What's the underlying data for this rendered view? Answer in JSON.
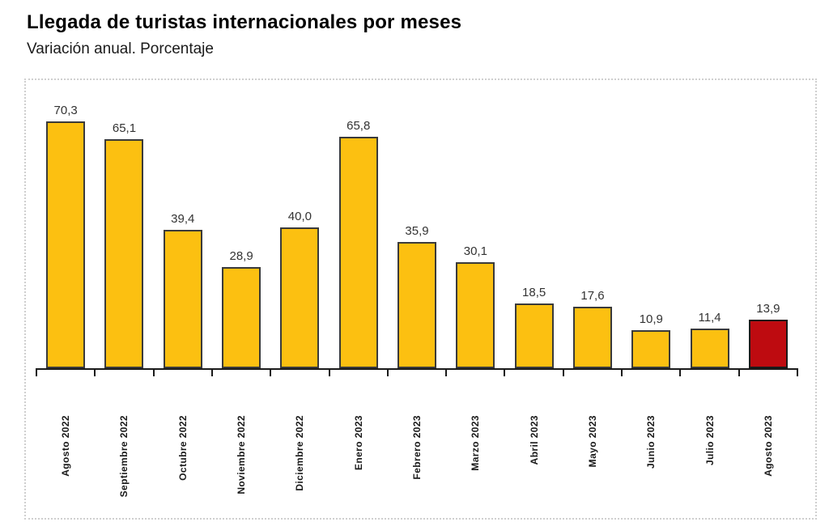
{
  "header": {
    "title": "Llegada de turistas internacionales por meses",
    "subtitle": "Variación anual. Porcentaje"
  },
  "chart_data": {
    "type": "bar",
    "title": "Llegada de turistas internacionales por meses",
    "subtitle": "Variación anual. Porcentaje",
    "categories": [
      "Agosto 2022",
      "Septiembre 2022",
      "Octubre 2022",
      "Noviembre 2022",
      "Diciembre 2022",
      "Enero 2023",
      "Febrero 2023",
      "Marzo 2023",
      "Abril 2023",
      "Mayo 2023",
      "Junio 2023",
      "Julio 2023",
      "Agosto 2023"
    ],
    "values": [
      70.3,
      65.1,
      39.4,
      28.9,
      40.0,
      65.8,
      35.9,
      30.1,
      18.5,
      17.6,
      10.9,
      11.4,
      13.9
    ],
    "value_labels": [
      "70,3",
      "65,1",
      "39,4",
      "28,9",
      "40,0",
      "65,8",
      "35,9",
      "30,1",
      "18,5",
      "17,6",
      "10,9",
      "11,4",
      "13,9"
    ],
    "xlabel": "",
    "ylabel": "",
    "ylim": [
      0,
      82
    ],
    "grid": false,
    "legend": false,
    "highlight_index": 12,
    "colors": {
      "bar_fill": "#FCC011",
      "bar_border": "#3A3A3A",
      "highlight_fill": "#BE0B10",
      "highlight_border": "#1A1A1A",
      "axis": "#1A1A1A",
      "frame_dotted": "#CFCFCF",
      "value_text": "#333333",
      "label_text": "#1A1A1A"
    }
  }
}
